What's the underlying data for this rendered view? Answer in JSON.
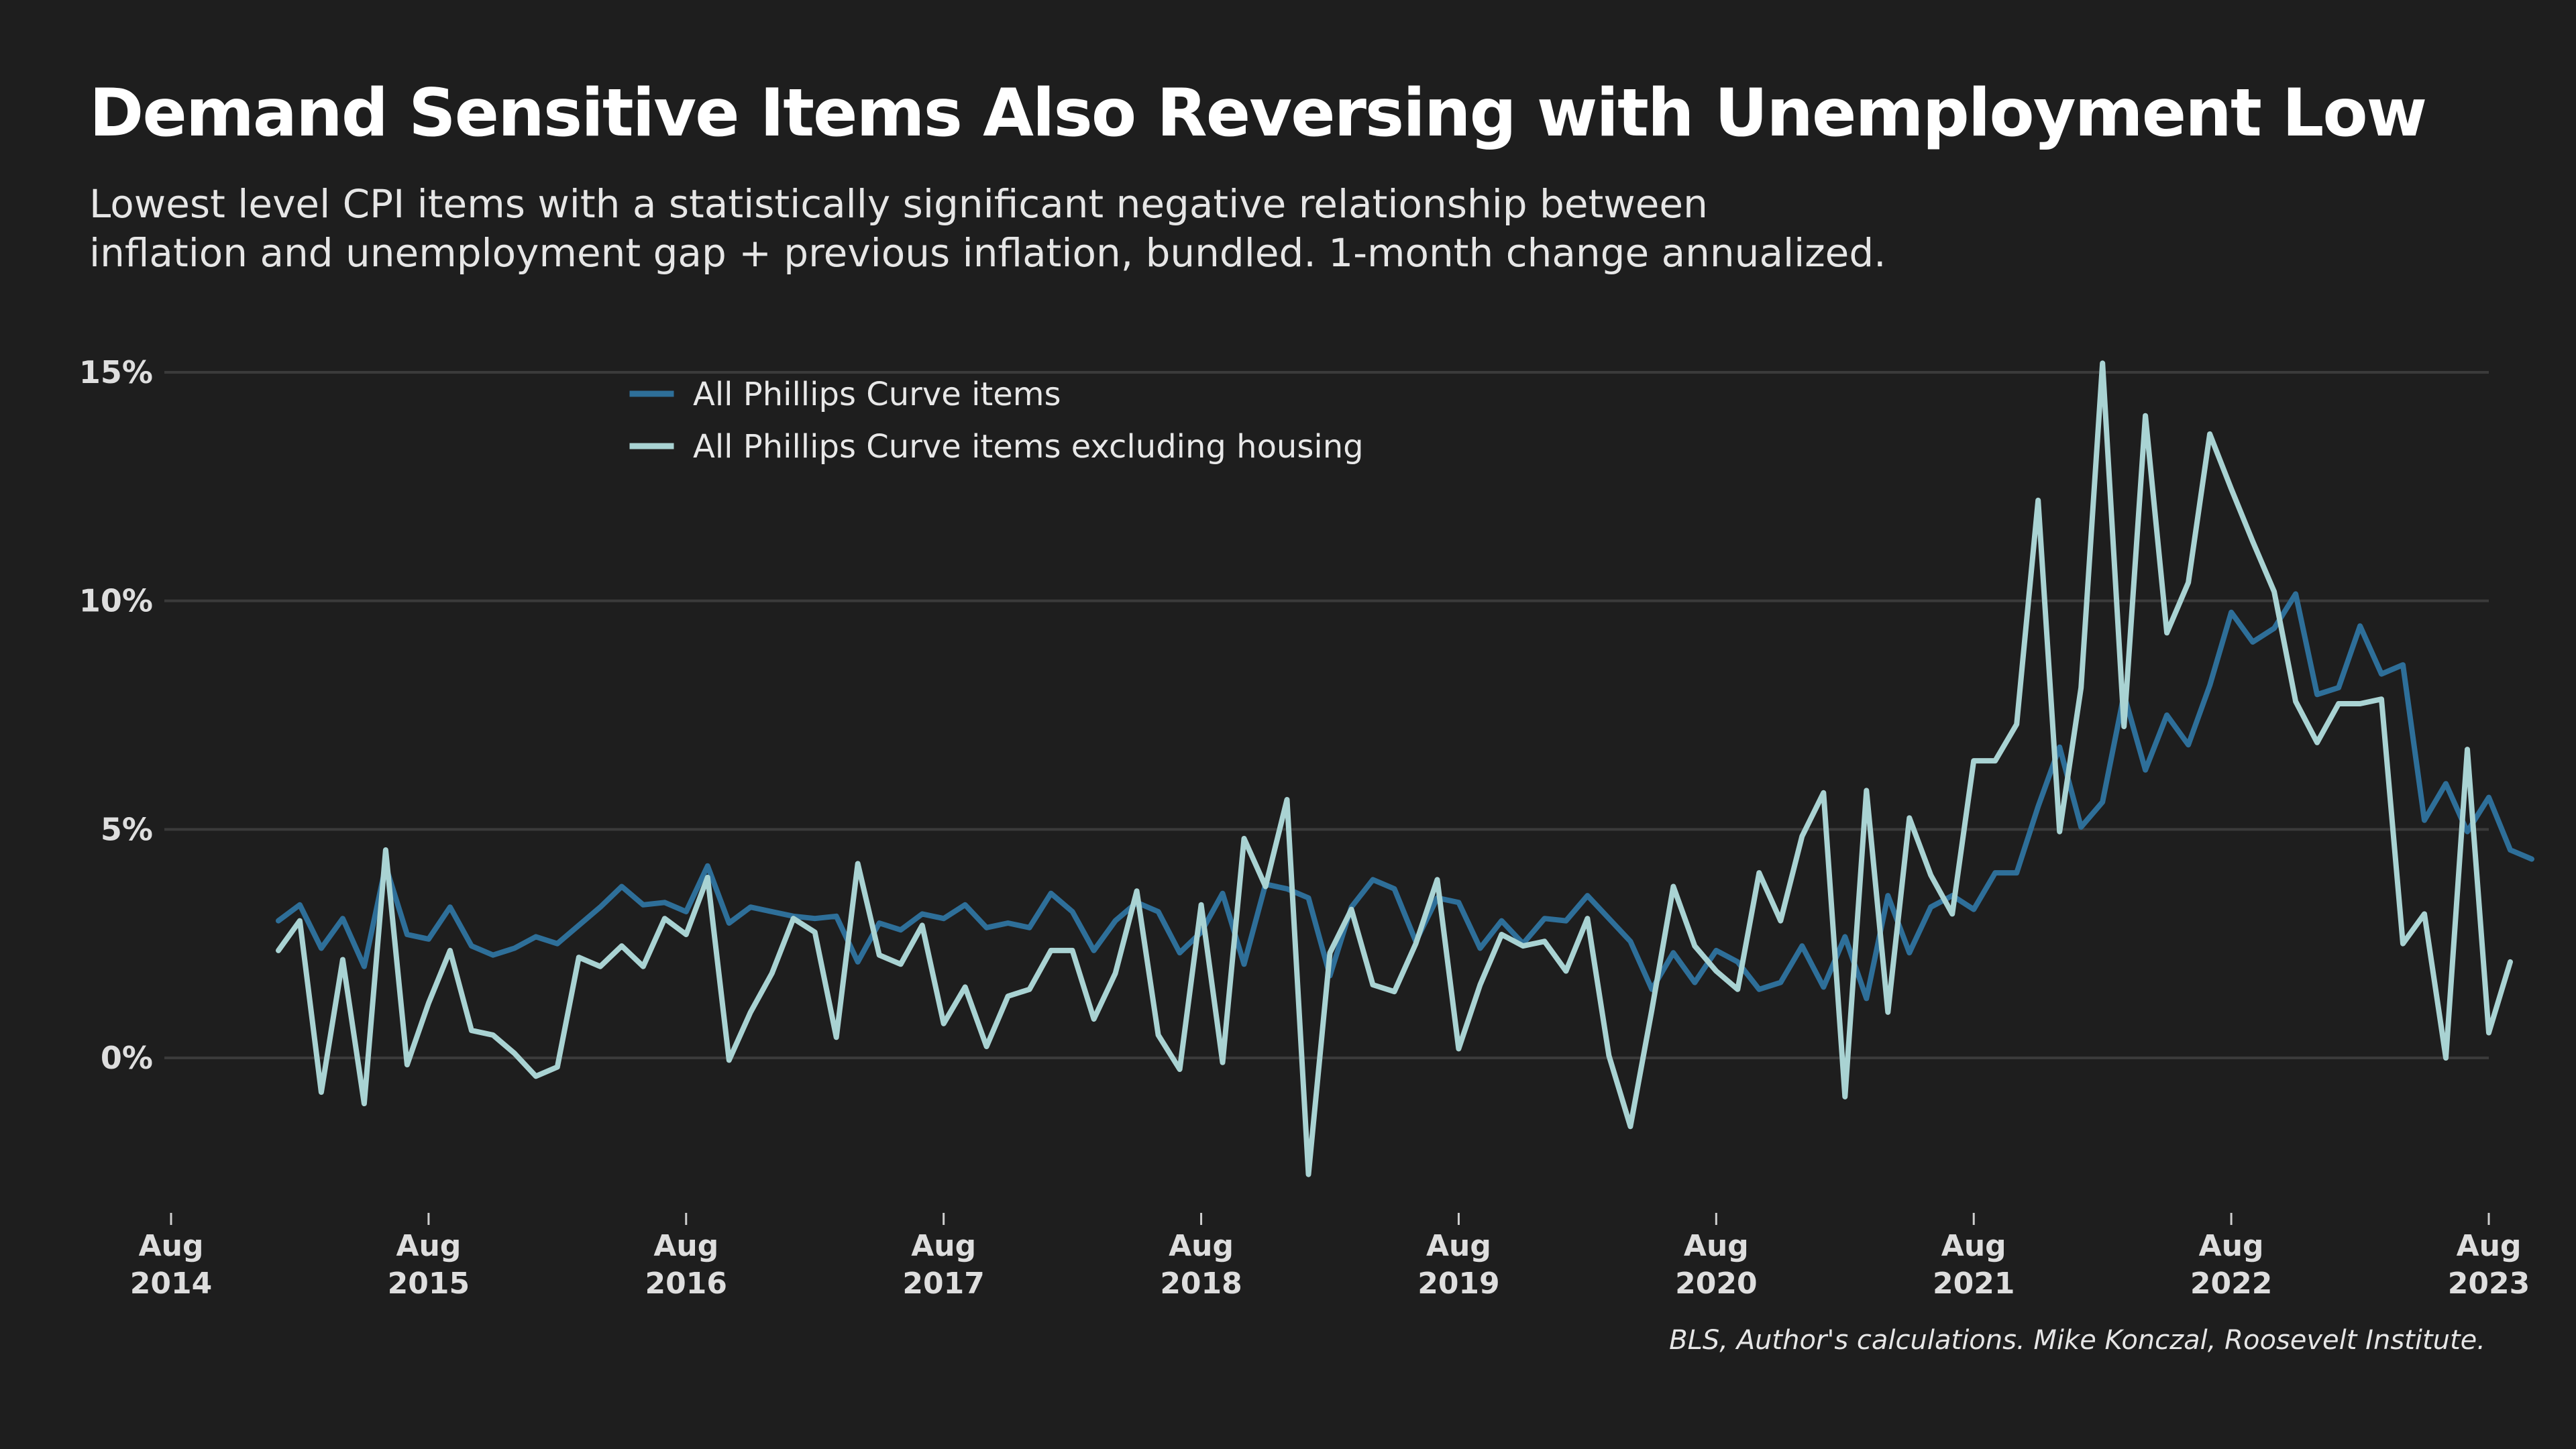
{
  "chart_data": {
    "type": "line",
    "title": "Demand Sensitive Items Also Reversing with Unemployment Low",
    "subtitle_lines": [
      "Lowest level CPI items with a statistically significant negative relationship between",
      "inflation and unemployment gap + previous inflation, bundled. 1-month change annualized."
    ],
    "source": "BLS, Author's calculations. Mike Konczal, Roosevelt Institute.",
    "xlabel": "",
    "ylabel": "",
    "x_start": "2015-01",
    "x_end": "2023-08",
    "xlim": [
      "2014-08",
      "2023-08"
    ],
    "ylim": [
      -3.5,
      16.5
    ],
    "y_ticks": [
      {
        "value": 0,
        "label": "0%"
      },
      {
        "value": 5,
        "label": "5%"
      },
      {
        "value": 10,
        "label": "10%"
      },
      {
        "value": 15,
        "label": "15%"
      }
    ],
    "x_ticks": [
      {
        "date": "2014-08",
        "month": "Aug",
        "year": "2014"
      },
      {
        "date": "2015-08",
        "month": "Aug",
        "year": "2015"
      },
      {
        "date": "2016-08",
        "month": "Aug",
        "year": "2016"
      },
      {
        "date": "2017-08",
        "month": "Aug",
        "year": "2017"
      },
      {
        "date": "2018-08",
        "month": "Aug",
        "year": "2018"
      },
      {
        "date": "2019-08",
        "month": "Aug",
        "year": "2019"
      },
      {
        "date": "2020-08",
        "month": "Aug",
        "year": "2020"
      },
      {
        "date": "2021-08",
        "month": "Aug",
        "year": "2021"
      },
      {
        "date": "2022-08",
        "month": "Aug",
        "year": "2022"
      },
      {
        "date": "2023-08",
        "month": "Aug",
        "year": "2023"
      }
    ],
    "grid": "horizontal",
    "legend_position": "top-center",
    "series": [
      {
        "name": "All Phillips Curve items",
        "color": "#2e6f99",
        "values": [
          3.0,
          3.35,
          2.4,
          3.05,
          2.0,
          4.2,
          2.7,
          2.6,
          3.3,
          2.45,
          2.25,
          2.4,
          2.65,
          2.5,
          2.9,
          3.3,
          3.75,
          3.35,
          3.4,
          3.2,
          4.2,
          2.95,
          3.3,
          3.2,
          3.1,
          3.05,
          3.1,
          2.1,
          2.95,
          2.8,
          3.15,
          3.05,
          3.35,
          2.85,
          2.95,
          2.85,
          3.6,
          3.2,
          2.35,
          3.0,
          3.4,
          3.2,
          2.3,
          2.75,
          3.6,
          2.05,
          3.8,
          3.7,
          3.5,
          1.8,
          3.3,
          3.9,
          3.7,
          2.55,
          3.5,
          3.4,
          2.4,
          3.0,
          2.5,
          3.05,
          3.0,
          3.55,
          3.05,
          2.55,
          1.5,
          2.3,
          1.65,
          2.35,
          2.1,
          1.5,
          1.65,
          2.45,
          1.55,
          2.65,
          1.3,
          3.55,
          2.3,
          3.3,
          3.55,
          3.25,
          4.05,
          4.05,
          5.5,
          6.8,
          5.05,
          5.6,
          7.95,
          6.3,
          7.5,
          6.85,
          8.15,
          9.75,
          9.1,
          9.4,
          10.15,
          7.95,
          8.1,
          9.45,
          8.4,
          8.6,
          5.2,
          6.0,
          4.95,
          5.7,
          4.55,
          4.35
        ]
      },
      {
        "name": "All Phillips Curve items excluding housing",
        "color": "#a9d3d3",
        "values": [
          2.35,
          3.0,
          -0.75,
          2.15,
          -1.0,
          4.55,
          -0.15,
          1.2,
          2.35,
          0.6,
          0.5,
          0.1,
          -0.4,
          -0.2,
          2.2,
          2.0,
          2.45,
          2.0,
          3.05,
          2.7,
          3.95,
          -0.05,
          1.0,
          1.85,
          3.05,
          2.75,
          0.45,
          4.25,
          2.25,
          2.05,
          2.9,
          0.75,
          1.55,
          0.25,
          1.35,
          1.5,
          2.35,
          2.35,
          0.85,
          1.85,
          3.65,
          0.5,
          -0.25,
          3.35,
          -0.1,
          4.8,
          3.75,
          5.65,
          -2.55,
          2.3,
          3.25,
          1.6,
          1.45,
          2.5,
          3.9,
          0.2,
          1.6,
          2.7,
          2.45,
          2.55,
          1.9,
          3.05,
          0.05,
          -1.5,
          1.05,
          3.75,
          2.45,
          1.9,
          1.5,
          4.05,
          3.0,
          4.85,
          5.8,
          -0.85,
          5.85,
          1.0,
          5.25,
          4.0,
          3.15,
          6.5,
          6.5,
          7.3,
          12.2,
          4.95,
          8.1,
          15.2,
          7.25,
          14.05,
          9.3,
          10.4,
          13.65,
          12.45,
          11.3,
          10.2,
          7.8,
          6.9,
          7.75,
          7.75,
          7.85,
          2.5,
          3.15,
          0.0,
          6.75,
          0.55,
          2.1
        ]
      }
    ]
  }
}
